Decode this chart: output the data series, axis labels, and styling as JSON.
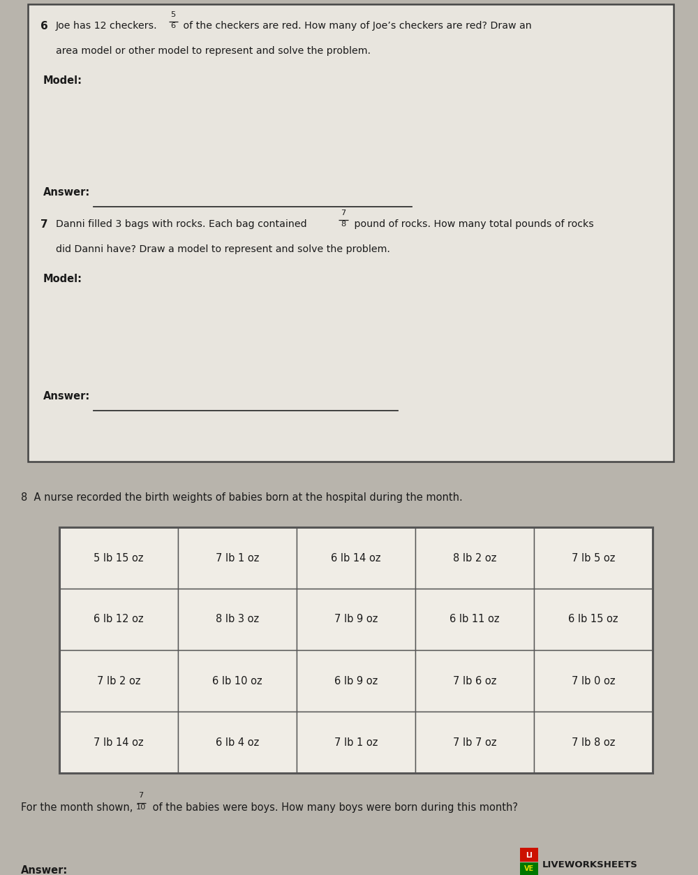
{
  "bg_color": "#b8b4ac",
  "box_bg": "#e8e5de",
  "table_bg": "#f0ede6",
  "text_color": "#1a1a1a",
  "border_color": "#444444",
  "line_color": "#333333",
  "table_border_color": "#555555",
  "table_data": [
    [
      "5 lb 15 oz",
      "7 lb 1 oz",
      "6 lb 14 oz",
      "8 lb 2 oz",
      "7 lb 5 oz"
    ],
    [
      "6 lb 12 oz",
      "8 lb 3 oz",
      "7 lb 9 oz",
      "6 lb 11 oz",
      "6 lb 15 oz"
    ],
    [
      "7 lb 2 oz",
      "6 lb 10 oz",
      "6 lb 9 oz",
      "7 lb 6 oz",
      "7 lb 0 oz"
    ],
    [
      "7 lb 14 oz",
      "6 lb 4 oz",
      "7 lb 1 oz",
      "7 lb 7 oz",
      "7 lb 8 oz"
    ]
  ],
  "liveworksheets_text": "LIVEWORKSHEETS",
  "page_width": 10.0,
  "page_height": 12.53
}
